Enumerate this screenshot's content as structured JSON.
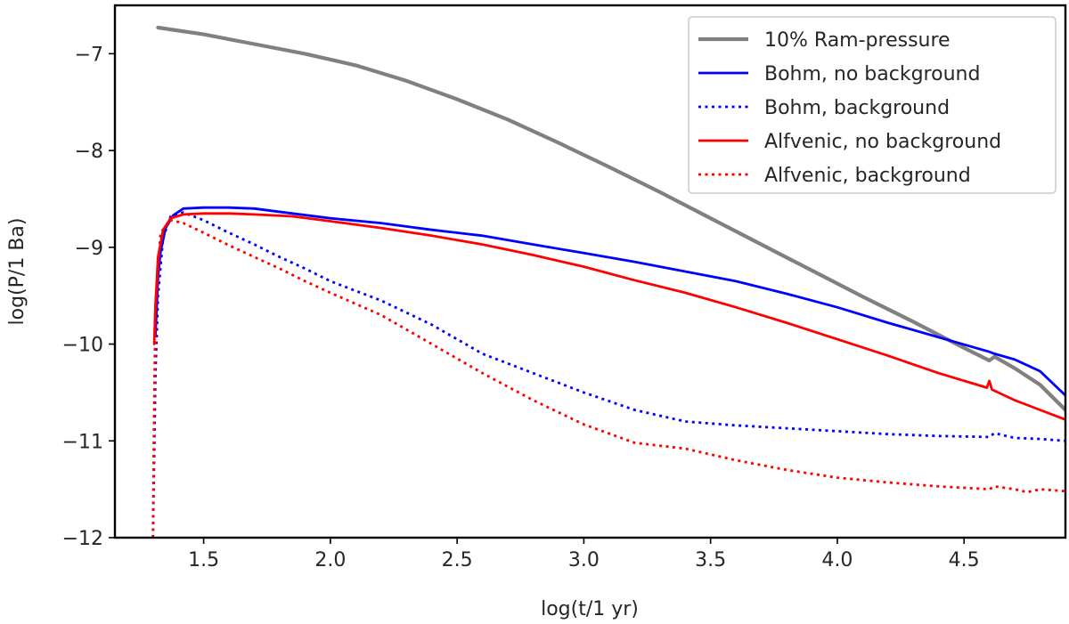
{
  "chart_data": {
    "type": "line",
    "title": "",
    "xlabel": "log(t/1 yr)",
    "ylabel": "log(P/1 Ba)",
    "xlim": [
      1.15,
      4.9
    ],
    "ylim": [
      -12,
      -6.5
    ],
    "xticks": [
      1.5,
      2.0,
      2.5,
      3.0,
      3.5,
      4.0,
      4.5
    ],
    "xtick_labels": [
      "1.5",
      "2.0",
      "2.5",
      "3.0",
      "3.5",
      "4.0",
      "4.5"
    ],
    "yticks": [
      -12,
      -11,
      -10,
      -9,
      -8,
      -7
    ],
    "ytick_labels": [
      "−12",
      "−11",
      "−10",
      "−9",
      "−8",
      "−7"
    ],
    "grid": false,
    "legend_position": "top-right",
    "series": [
      {
        "name": "10% Ram-pressure",
        "color": "#808080",
        "style": "solid",
        "x": [
          1.32,
          1.5,
          1.7,
          1.9,
          2.1,
          2.3,
          2.5,
          2.7,
          2.9,
          3.1,
          3.3,
          3.5,
          3.7,
          3.9,
          4.1,
          4.3,
          4.5,
          4.6,
          4.62,
          4.7,
          4.8,
          4.9
        ],
        "y": [
          -6.73,
          -6.8,
          -6.9,
          -7.0,
          -7.12,
          -7.28,
          -7.47,
          -7.68,
          -7.92,
          -8.17,
          -8.43,
          -8.7,
          -8.97,
          -9.24,
          -9.51,
          -9.77,
          -10.04,
          -10.17,
          -10.13,
          -10.25,
          -10.42,
          -10.68
        ]
      },
      {
        "name": "Bohm, no background",
        "color": "#0000ff",
        "style": "solid",
        "x": [
          1.31,
          1.32,
          1.33,
          1.35,
          1.38,
          1.42,
          1.5,
          1.6,
          1.7,
          1.85,
          2.0,
          2.2,
          2.4,
          2.6,
          2.8,
          3.0,
          3.2,
          3.4,
          3.6,
          3.8,
          4.0,
          4.2,
          4.4,
          4.6,
          4.62,
          4.7,
          4.8,
          4.9
        ],
        "y": [
          -9.9,
          -9.3,
          -9.05,
          -8.8,
          -8.67,
          -8.6,
          -8.59,
          -8.59,
          -8.6,
          -8.65,
          -8.7,
          -8.75,
          -8.82,
          -8.88,
          -8.97,
          -9.06,
          -9.15,
          -9.25,
          -9.35,
          -9.48,
          -9.62,
          -9.78,
          -9.93,
          -10.08,
          -10.1,
          -10.16,
          -10.28,
          -10.53
        ]
      },
      {
        "name": "Bohm, background",
        "color": "#0000ff",
        "style": "dotted",
        "x": [
          1.3,
          1.31,
          1.32,
          1.34,
          1.37,
          1.42,
          1.5,
          1.6,
          1.7,
          1.8,
          1.9,
          2.0,
          2.2,
          2.4,
          2.6,
          2.8,
          3.0,
          3.2,
          3.4,
          3.6,
          3.8,
          4.0,
          4.2,
          4.4,
          4.6,
          4.62,
          4.7,
          4.8,
          4.9
        ],
        "y": [
          -12.0,
          -10.3,
          -9.5,
          -8.9,
          -8.68,
          -8.64,
          -8.72,
          -8.85,
          -8.97,
          -9.1,
          -9.22,
          -9.35,
          -9.55,
          -9.8,
          -10.1,
          -10.3,
          -10.5,
          -10.68,
          -10.8,
          -10.84,
          -10.87,
          -10.9,
          -10.93,
          -10.95,
          -10.96,
          -10.92,
          -10.97,
          -10.98,
          -11.0
        ]
      },
      {
        "name": "Alfvenic, no background",
        "color": "#ff0000",
        "style": "solid",
        "x": [
          1.305,
          1.31,
          1.32,
          1.34,
          1.37,
          1.42,
          1.5,
          1.6,
          1.7,
          1.85,
          2.0,
          2.2,
          2.4,
          2.6,
          2.8,
          3.0,
          3.2,
          3.4,
          3.6,
          3.8,
          4.0,
          4.2,
          4.4,
          4.59,
          4.6,
          4.61,
          4.7,
          4.8,
          4.9
        ],
        "y": [
          -10.0,
          -9.6,
          -9.1,
          -8.82,
          -8.7,
          -8.66,
          -8.65,
          -8.65,
          -8.66,
          -8.68,
          -8.73,
          -8.8,
          -8.88,
          -8.97,
          -9.08,
          -9.2,
          -9.34,
          -9.47,
          -9.62,
          -9.78,
          -9.95,
          -10.12,
          -10.3,
          -10.45,
          -10.38,
          -10.47,
          -10.58,
          -10.68,
          -10.78
        ]
      },
      {
        "name": "Alfvenic, background",
        "color": "#ff0000",
        "style": "dotted",
        "x": [
          1.3,
          1.305,
          1.31,
          1.33,
          1.37,
          1.42,
          1.5,
          1.6,
          1.7,
          1.8,
          1.9,
          2.0,
          2.2,
          2.4,
          2.6,
          2.8,
          3.0,
          3.2,
          3.4,
          3.6,
          3.8,
          4.0,
          4.2,
          4.4,
          4.6,
          4.62,
          4.7,
          4.75,
          4.8,
          4.9
        ],
        "y": [
          -12.0,
          -10.6,
          -9.7,
          -8.85,
          -8.72,
          -8.75,
          -8.85,
          -8.98,
          -9.1,
          -9.22,
          -9.35,
          -9.47,
          -9.7,
          -10.0,
          -10.3,
          -10.58,
          -10.83,
          -11.02,
          -11.08,
          -11.2,
          -11.3,
          -11.38,
          -11.43,
          -11.47,
          -11.5,
          -11.47,
          -11.5,
          -11.53,
          -11.5,
          -11.52
        ]
      }
    ]
  }
}
